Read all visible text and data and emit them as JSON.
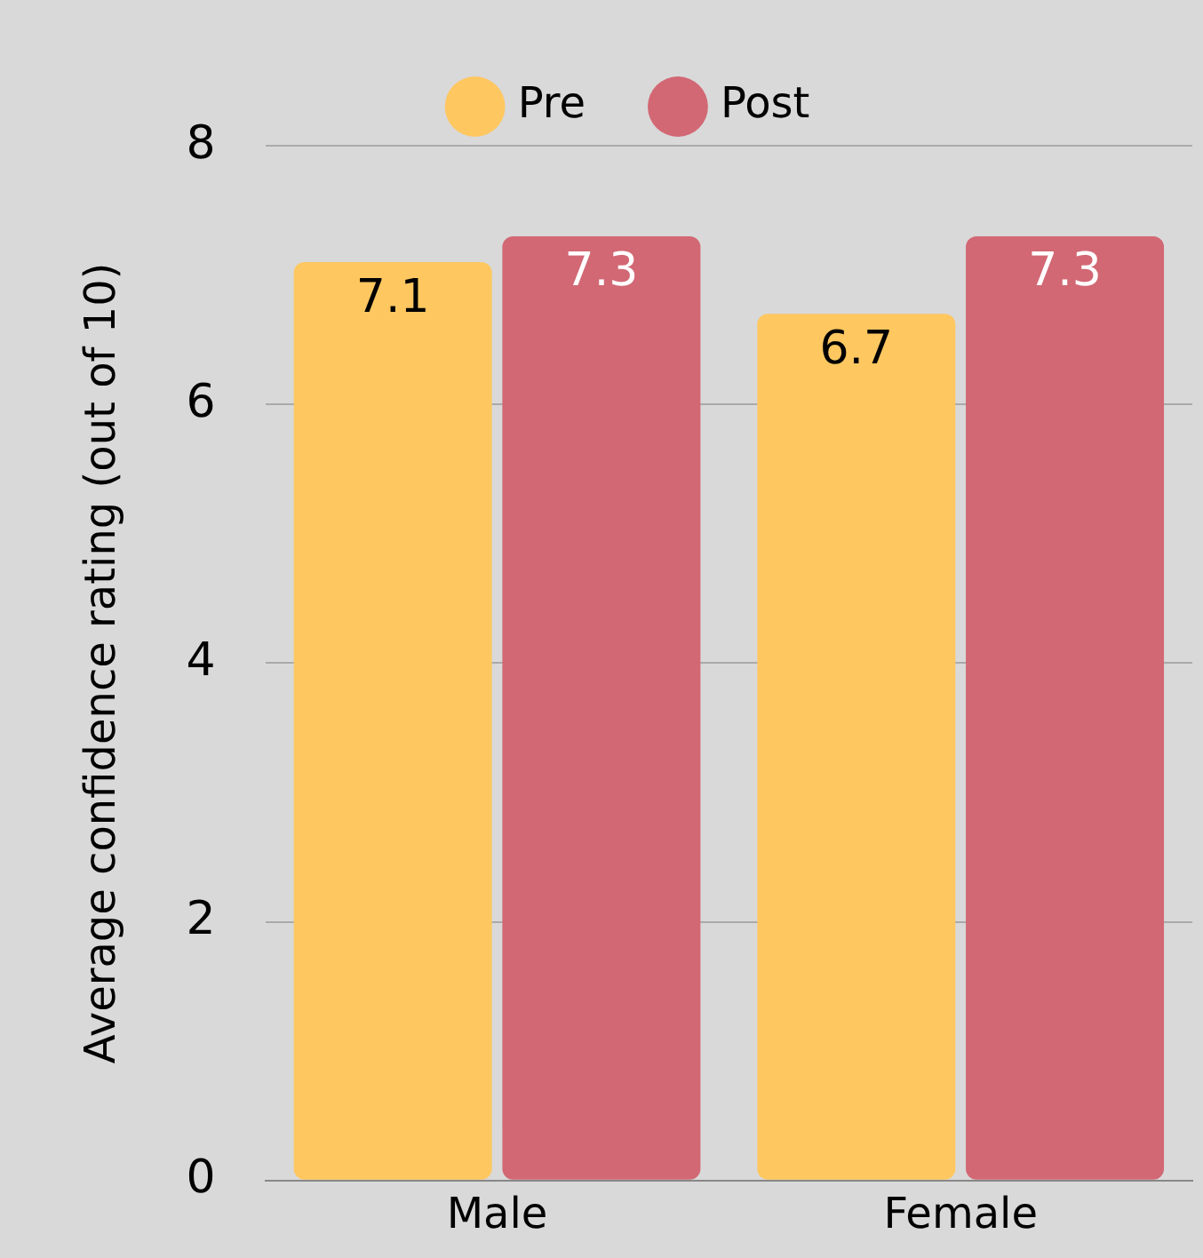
{
  "chart_data": {
    "type": "bar",
    "ylabel": "Average confidence rating (out of 10)",
    "categories": [
      "Male",
      "Female"
    ],
    "series": [
      {
        "name": "Pre",
        "color": "#fec760",
        "values": [
          7.1,
          6.7
        ]
      },
      {
        "name": "Post",
        "color": "#d26874",
        "values": [
          7.3,
          7.3
        ]
      }
    ],
    "ylim": [
      0,
      8
    ],
    "yticks": [
      0,
      2,
      4,
      6,
      8
    ],
    "grid": "y",
    "legend": "top",
    "data_labels": true
  }
}
